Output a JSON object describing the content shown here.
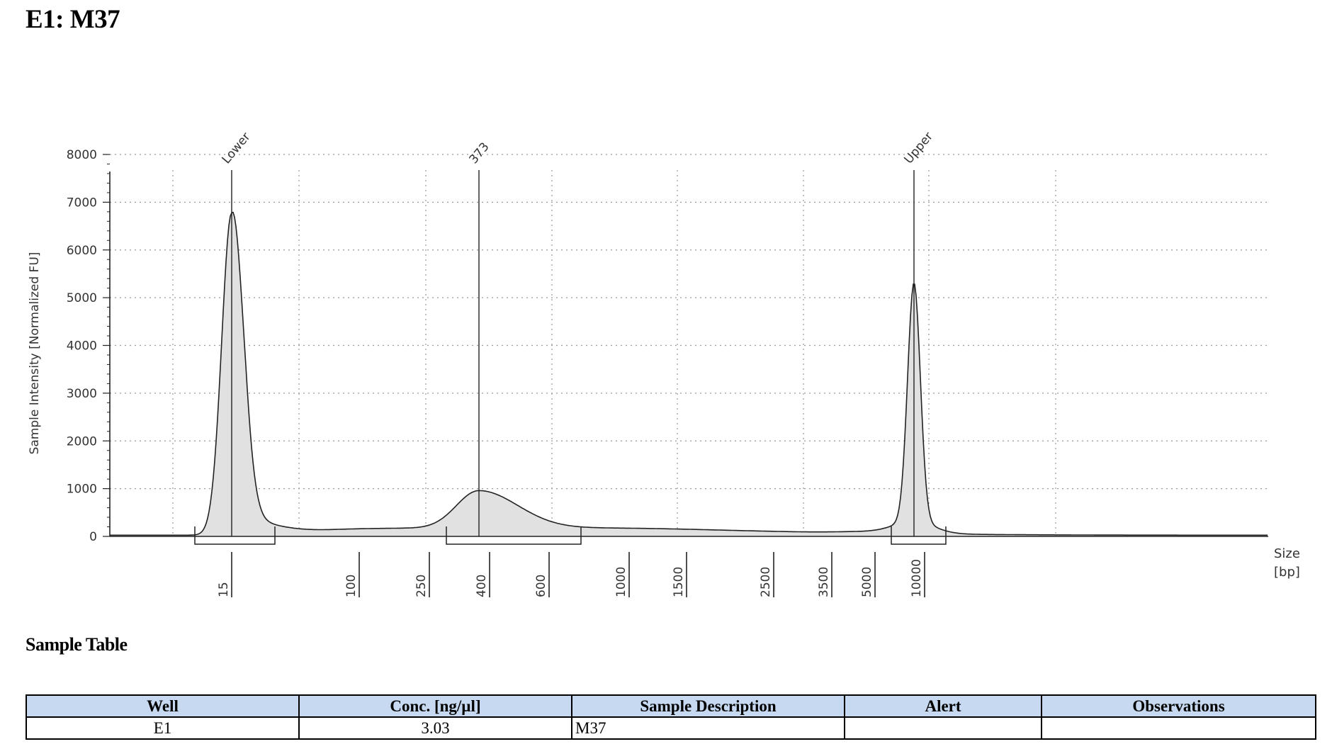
{
  "page": {
    "title": "E1: M37",
    "sample_table_title": "Sample Table"
  },
  "sample_table": {
    "headers": [
      "Well",
      "Conc. [ng/µl]",
      "Sample Description",
      "Alert",
      "Observations"
    ],
    "rows": [
      [
        "E1",
        "3.03",
        "M37",
        "",
        ""
      ]
    ]
  },
  "colors": {
    "fill": "#e1e1e1",
    "line": "#222222",
    "grid": "#9a9a9a",
    "header_bg": "#c6d9f1"
  },
  "chart_data": {
    "type": "area",
    "title": "",
    "xlabel": "Size [bp]",
    "xlabel_parts": [
      "Size",
      "[bp]"
    ],
    "ylabel": "Sample Intensity [Normalized FU]",
    "ylim": [
      0,
      8000
    ],
    "yticks": [
      0,
      1000,
      2000,
      3000,
      4000,
      5000,
      6000,
      7000,
      8000
    ],
    "grid": true,
    "x_scale": "ladder-calibrated (electropherogram migration, nonlinear in bp)",
    "ladder_ticks": [
      "15",
      "100",
      "250",
      "400",
      "600",
      "1000",
      "1500",
      "2500",
      "3500",
      "5000",
      "10000"
    ],
    "peaks": [
      {
        "label": "Lower",
        "size_bp": 15,
        "intensity": 6750
      },
      {
        "label": "373",
        "size_bp": 373,
        "intensity": 900
      },
      {
        "label": "Upper",
        "size_bp": 10000,
        "intensity": 5000
      }
    ],
    "regions": [
      {
        "from_bp": "Lower start",
        "to_bp": "Lower end"
      },
      {
        "from_bp": 250,
        "to_bp": 600
      },
      {
        "from_bp": "Upper start",
        "to_bp": "Upper end"
      }
    ]
  }
}
